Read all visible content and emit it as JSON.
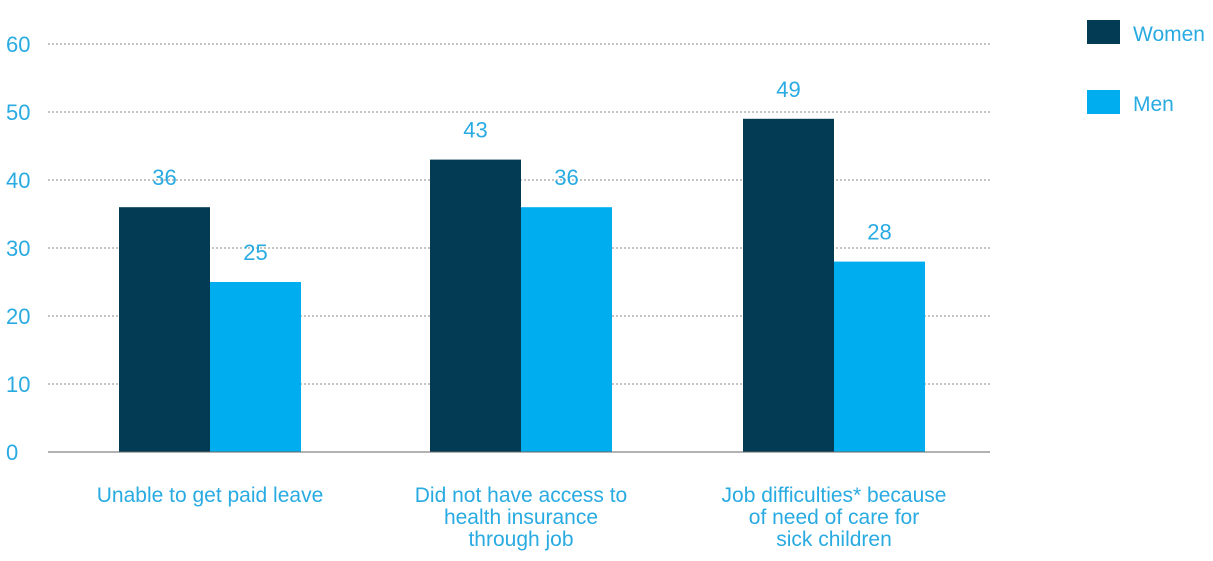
{
  "chart_data": {
    "type": "bar",
    "categories": [
      [
        "Unable to get paid leave"
      ],
      [
        "Did not have access to",
        "health insurance",
        "through job"
      ],
      [
        "Job difficulties* because",
        "of need of care for",
        "sick children"
      ]
    ],
    "series": [
      {
        "name": "Women",
        "color": "#033a54",
        "values": [
          36,
          43,
          49
        ]
      },
      {
        "name": "Men",
        "color": "#00aeef",
        "values": [
          25,
          36,
          28
        ]
      }
    ],
    "yticks": [
      "0",
      "10",
      "20",
      "30",
      "40",
      "50",
      "60"
    ],
    "ylim": [
      0,
      60
    ],
    "grid": true,
    "legend_position": "top-right",
    "title": "",
    "xlabel": "",
    "ylabel": ""
  }
}
